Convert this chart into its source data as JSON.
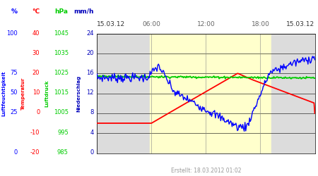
{
  "title": "15.03.12",
  "title_right": "15.03.12",
  "created": "Erstellt: 18.03.2012 01:02",
  "time_labels": [
    "06:00",
    "12:00",
    "18:00"
  ],
  "fig_width": 4.5,
  "fig_height": 2.5,
  "dpi": 100,
  "col_headers": [
    "%",
    "°C",
    "hPa",
    "mm/h"
  ],
  "col_header_colors": [
    "#0000ff",
    "#ff0000",
    "#00cc00",
    "#0000bb"
  ],
  "rows_col1": [
    "100",
    "",
    "75",
    "50",
    "25",
    "",
    "0"
  ],
  "rows_col2": [
    "40",
    "30",
    "20",
    "10",
    "0",
    "-10",
    "-20"
  ],
  "rows_col3": [
    "1045",
    "1035",
    "1025",
    "1015",
    "1005",
    "995",
    "985"
  ],
  "rows_col4": [
    "24",
    "20",
    "16",
    "12",
    "8",
    "4",
    "0"
  ],
  "rot_labels": [
    "Luftfeuchtigkeit",
    "Temperatur",
    "Luftdruck",
    "Niederschlag"
  ],
  "rot_colors": [
    "#0000ff",
    "#ff0000",
    "#00cc00",
    "#0000bb"
  ],
  "humidity_color": "#0000ff",
  "temperature_color": "#ff0000",
  "pressure_color": "#00cc00",
  "bg_night": "#dcdcdc",
  "bg_day": "#ffffcc",
  "n_points": 288
}
